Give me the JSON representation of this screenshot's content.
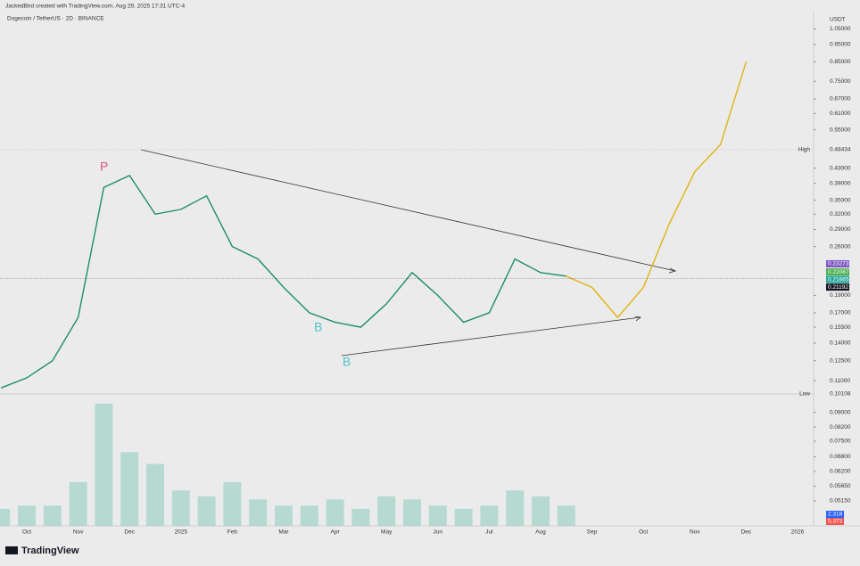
{
  "header": {
    "credit": "JackedBird created with TradingView.com, Aug 29, 2025 17:31 UTC-4",
    "symbol": "Dogecoin / TetherUS · 2D · BINANCE",
    "currency": "USDT"
  },
  "footer": {
    "logo": "TradingView"
  },
  "annotations": [
    "P",
    "B",
    "B"
  ],
  "chart_data": {
    "type": "line",
    "log_scale": true,
    "grid": false,
    "categories": [
      null,
      "Oct",
      null,
      "Nov",
      null,
      "Dec",
      null,
      "2025",
      null,
      "Feb",
      null,
      "Mar",
      null,
      "Apr",
      null,
      "May",
      null,
      "Jun",
      null,
      "Jul",
      null,
      "Aug",
      null,
      "Sep",
      null,
      "Oct",
      null,
      "Nov",
      null,
      "Dec",
      null,
      "2026",
      null
    ],
    "series": [
      {
        "name": "Dogecoin / TetherUS",
        "color": "#1e8c6e",
        "values": [
          0.105,
          0.112,
          0.125,
          0.165,
          0.38,
          0.41,
          0.32,
          0.33,
          0.36,
          0.26,
          0.24,
          0.2,
          0.17,
          0.16,
          0.155,
          0.18,
          0.22,
          0.19,
          0.16,
          0.17,
          0.24,
          0.22,
          0.215,
          null,
          null,
          null,
          null,
          null,
          null,
          null,
          null,
          null,
          null
        ]
      },
      {
        "name": "Projection",
        "color": "#e0b412",
        "values": [
          null,
          null,
          null,
          null,
          null,
          null,
          null,
          null,
          null,
          null,
          null,
          null,
          null,
          null,
          null,
          null,
          null,
          null,
          null,
          null,
          null,
          null,
          0.215,
          0.2,
          0.165,
          0.2,
          0.3,
          0.42,
          0.5,
          0.85,
          null,
          null,
          null
        ]
      },
      {
        "name": "Volume",
        "color": "#9fd3c7",
        "axis": "y2",
        "values": [
          0.049,
          0.05,
          0.05,
          0.058,
          0.095,
          0.07,
          0.065,
          0.055,
          0.053,
          0.058,
          0.052,
          0.05,
          0.05,
          0.052,
          0.049,
          0.053,
          0.052,
          0.05,
          0.049,
          0.05,
          0.055,
          0.053,
          0.05,
          null,
          null,
          null,
          null,
          null,
          null,
          null,
          null,
          null,
          null
        ]
      }
    ],
    "ylim": [
      0.101,
      1.18
    ],
    "yticks": [
      {
        "value": 1.05,
        "label": "1.05000"
      },
      {
        "value": 0.95,
        "label": "0.95000"
      },
      {
        "value": 0.85,
        "label": "0.85000"
      },
      {
        "value": 0.75,
        "label": "0.75000"
      },
      {
        "value": 0.67,
        "label": "0.67000"
      },
      {
        "value": 0.61,
        "label": "0.61000"
      },
      {
        "value": 0.55,
        "label": "0.55000"
      },
      {
        "value": 0.43,
        "label": "0.43000"
      },
      {
        "value": 0.39,
        "label": "0.39000"
      },
      {
        "value": 0.35,
        "label": "0.35000"
      },
      {
        "value": 0.32,
        "label": "0.32000"
      },
      {
        "value": 0.29,
        "label": "0.29000"
      },
      {
        "value": 0.26,
        "label": "0.26000"
      },
      {
        "value": 0.19,
        "label": "0.19000"
      },
      {
        "value": 0.17,
        "label": "0.17000"
      },
      {
        "value": 0.155,
        "label": "0.15500"
      },
      {
        "value": 0.14,
        "label": "0.14000"
      },
      {
        "value": 0.125,
        "label": "0.12500"
      },
      {
        "value": 0.11,
        "label": "0.11000"
      }
    ],
    "y2lim": [
      0.044,
      0.101
    ],
    "y2ticks": [
      {
        "value": 0.09,
        "label": "0.09000"
      },
      {
        "value": 0.082,
        "label": "0.08200"
      },
      {
        "value": 0.075,
        "label": "0.07500"
      },
      {
        "value": 0.068,
        "label": "0.06800"
      },
      {
        "value": 0.062,
        "label": "0.06200"
      },
      {
        "value": 0.0565,
        "label": "0.05650"
      },
      {
        "value": 0.0515,
        "label": "0.05150"
      }
    ],
    "high": {
      "label": "High",
      "value": 0.48434
    },
    "low": {
      "label": "Low",
      "value": 0.10108
    },
    "price_tags": [
      {
        "value": 0.23273,
        "color": "#7e57c2"
      },
      {
        "value": 0.22087,
        "color": "#4caf50"
      },
      {
        "value": 0.21665,
        "color": "#26a69a"
      },
      {
        "value": 0.21192,
        "color": "#131722"
      }
    ],
    "volume_tags": [
      {
        "value": 2.318,
        "color": "#2962ff"
      },
      {
        "value": 5.373,
        "color": "#ef5350"
      }
    ]
  }
}
